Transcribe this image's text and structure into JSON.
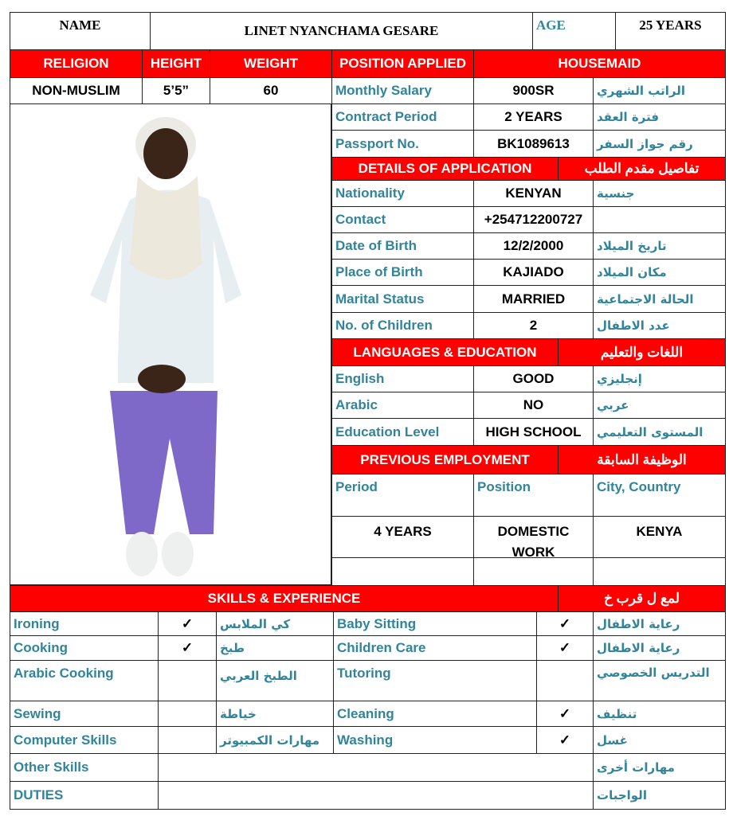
{
  "header": {
    "name_label": "NAME",
    "name": "LINET NYANCHAMA GESARE",
    "age_label": "AGE",
    "age": "25 YEARS"
  },
  "personal": {
    "religion_label": "RELIGION",
    "height_label": "HEIGHT",
    "weight_label": "WEIGHT",
    "religion": "NON-MUSLIM",
    "height": "5’5”",
    "weight": "60"
  },
  "position": {
    "label": "POSITION APPLIED",
    "value": "HOUSEMAID"
  },
  "contract": [
    {
      "label": "Monthly Salary",
      "value": "900SR",
      "arabic": "الراتب الشهري"
    },
    {
      "label": "Contract Period",
      "value": "2 YEARS",
      "arabic": "فترة العقد"
    },
    {
      "label": "Passport No.",
      "value": "BK1089613",
      "arabic": "رقم جواز السفر"
    }
  ],
  "details": {
    "title": "DETAILS OF APPLICATION",
    "title_arabic": "تفاصيل مقدم الطلب",
    "rows": [
      {
        "label": "Nationality",
        "value": "KENYAN",
        "arabic": "جنسية"
      },
      {
        "label": "Contact",
        "value": "+254712200727",
        "arabic": ""
      },
      {
        "label": "Date of Birth",
        "value": "12/2/2000",
        "arabic": "تاريخ الميلاد"
      },
      {
        "label": "Place of Birth",
        "value": "KAJIADO",
        "arabic": "مكان الميلاد"
      },
      {
        "label": "Marital Status",
        "value": "MARRIED",
        "arabic": "الحالة الاجتماعية"
      },
      {
        "label": "No. of Children",
        "value": "2",
        "arabic": "عدد الاطفال"
      }
    ]
  },
  "languages": {
    "title": "LANGUAGES & EDUCATION",
    "title_arabic": "اللغات والتعليم",
    "rows": [
      {
        "label": "English",
        "value": "GOOD",
        "arabic": "إنجليزي"
      },
      {
        "label": "Arabic",
        "value": "NO",
        "arabic": "عربي"
      },
      {
        "label": "Education Level",
        "value": "HIGH SCHOOL",
        "arabic": "المستوى التعليمي"
      }
    ]
  },
  "employment": {
    "title": "PREVIOUS EMPLOYMENT",
    "title_arabic": "الوظيفة السابقة",
    "headers": [
      "Period",
      "Position",
      "City, Country"
    ],
    "rows": [
      [
        "4 YEARS",
        "DOMESTIC WORK",
        "KENYA"
      ]
    ]
  },
  "skills": {
    "title": "SKILLS & EXPERIENCE",
    "title_arabic": "لمع ل قرب خ",
    "left": [
      {
        "label": "Ironing",
        "check": "✓",
        "arabic": "كي الملابس"
      },
      {
        "label": "Cooking",
        "check": "✓",
        "arabic": "طبخ"
      },
      {
        "label": "Arabic Cooking",
        "check": "",
        "arabic": "الطبخ العربي"
      },
      {
        "label": "Sewing",
        "check": "",
        "arabic": "خياطة"
      },
      {
        "label": "Computer Skills",
        "check": "",
        "arabic": "مهارات الكمبيوتر"
      }
    ],
    "right": [
      {
        "label": "Baby Sitting",
        "check": "✓",
        "arabic": "رعاية الاطفال"
      },
      {
        "label": "Children Care",
        "check": "✓",
        "arabic": "رعاية الاطفال"
      },
      {
        "label": "Tutoring",
        "check": "",
        "arabic": "التدريس الخصوصي"
      },
      {
        "label": "Cleaning",
        "check": "✓",
        "arabic": "تنظيف"
      },
      {
        "label": "Washing",
        "check": "✓",
        "arabic": "غسل"
      }
    ],
    "other_label": "Other Skills",
    "other_arabic": "مهارات أخرى",
    "duties_label": "DUTIES",
    "duties_arabic": "الواجبات"
  },
  "colors": {
    "header_red": "#ff0000",
    "label_teal": "#31849b"
  }
}
